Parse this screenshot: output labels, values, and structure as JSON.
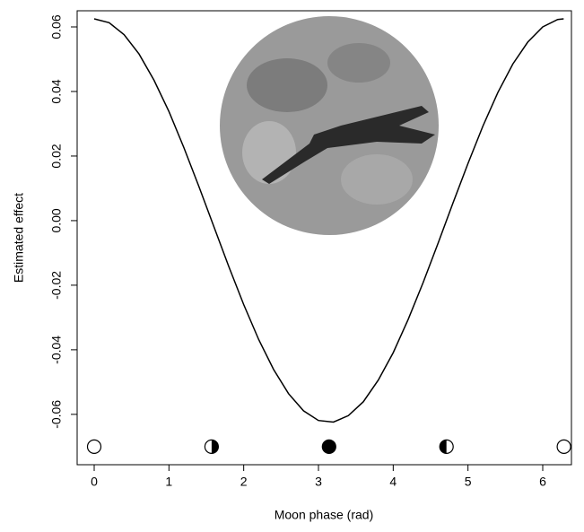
{
  "chart_data": {
    "type": "line",
    "x_label": "Moon phase (rad)",
    "y_label": "Estimated effect",
    "x": [
      0,
      0.2,
      0.4,
      0.6,
      0.8,
      1.0,
      1.2,
      1.4,
      1.6,
      1.8,
      2.0,
      2.2,
      2.4,
      2.6,
      2.8,
      3.0,
      3.2,
      3.4,
      3.6,
      3.8,
      4.0,
      4.2,
      4.4,
      4.6,
      4.8,
      5.0,
      5.2,
      5.4,
      5.6,
      5.8,
      6.0,
      6.2,
      6.28
    ],
    "values": [
      0.0625,
      0.0613,
      0.0576,
      0.0516,
      0.0435,
      0.0338,
      0.0226,
      0.0106,
      -0.0018,
      -0.0142,
      -0.026,
      -0.0368,
      -0.0461,
      -0.0536,
      -0.0589,
      -0.0619,
      -0.0624,
      -0.0604,
      -0.0561,
      -0.0494,
      -0.0409,
      -0.0306,
      -0.0192,
      -0.007,
      0.0055,
      0.0177,
      0.0293,
      0.0397,
      0.0485,
      0.0553,
      0.06,
      0.0623,
      0.0625
    ],
    "color": "#000000",
    "xlim": [
      -0.228,
      6.384
    ],
    "ylim": [
      -0.0756,
      0.065
    ],
    "xticks": [
      0,
      1,
      2,
      3,
      4,
      5,
      6
    ],
    "yticks": [
      -0.06,
      -0.04,
      -0.02,
      {
        "value": 0,
        "label": "0.00"
      },
      0.02,
      0.04,
      0.06
    ],
    "moon_phases": {
      "x": [
        0,
        1.5708,
        3.1416,
        4.7124,
        6.2832
      ],
      "y": -0.07
    }
  }
}
